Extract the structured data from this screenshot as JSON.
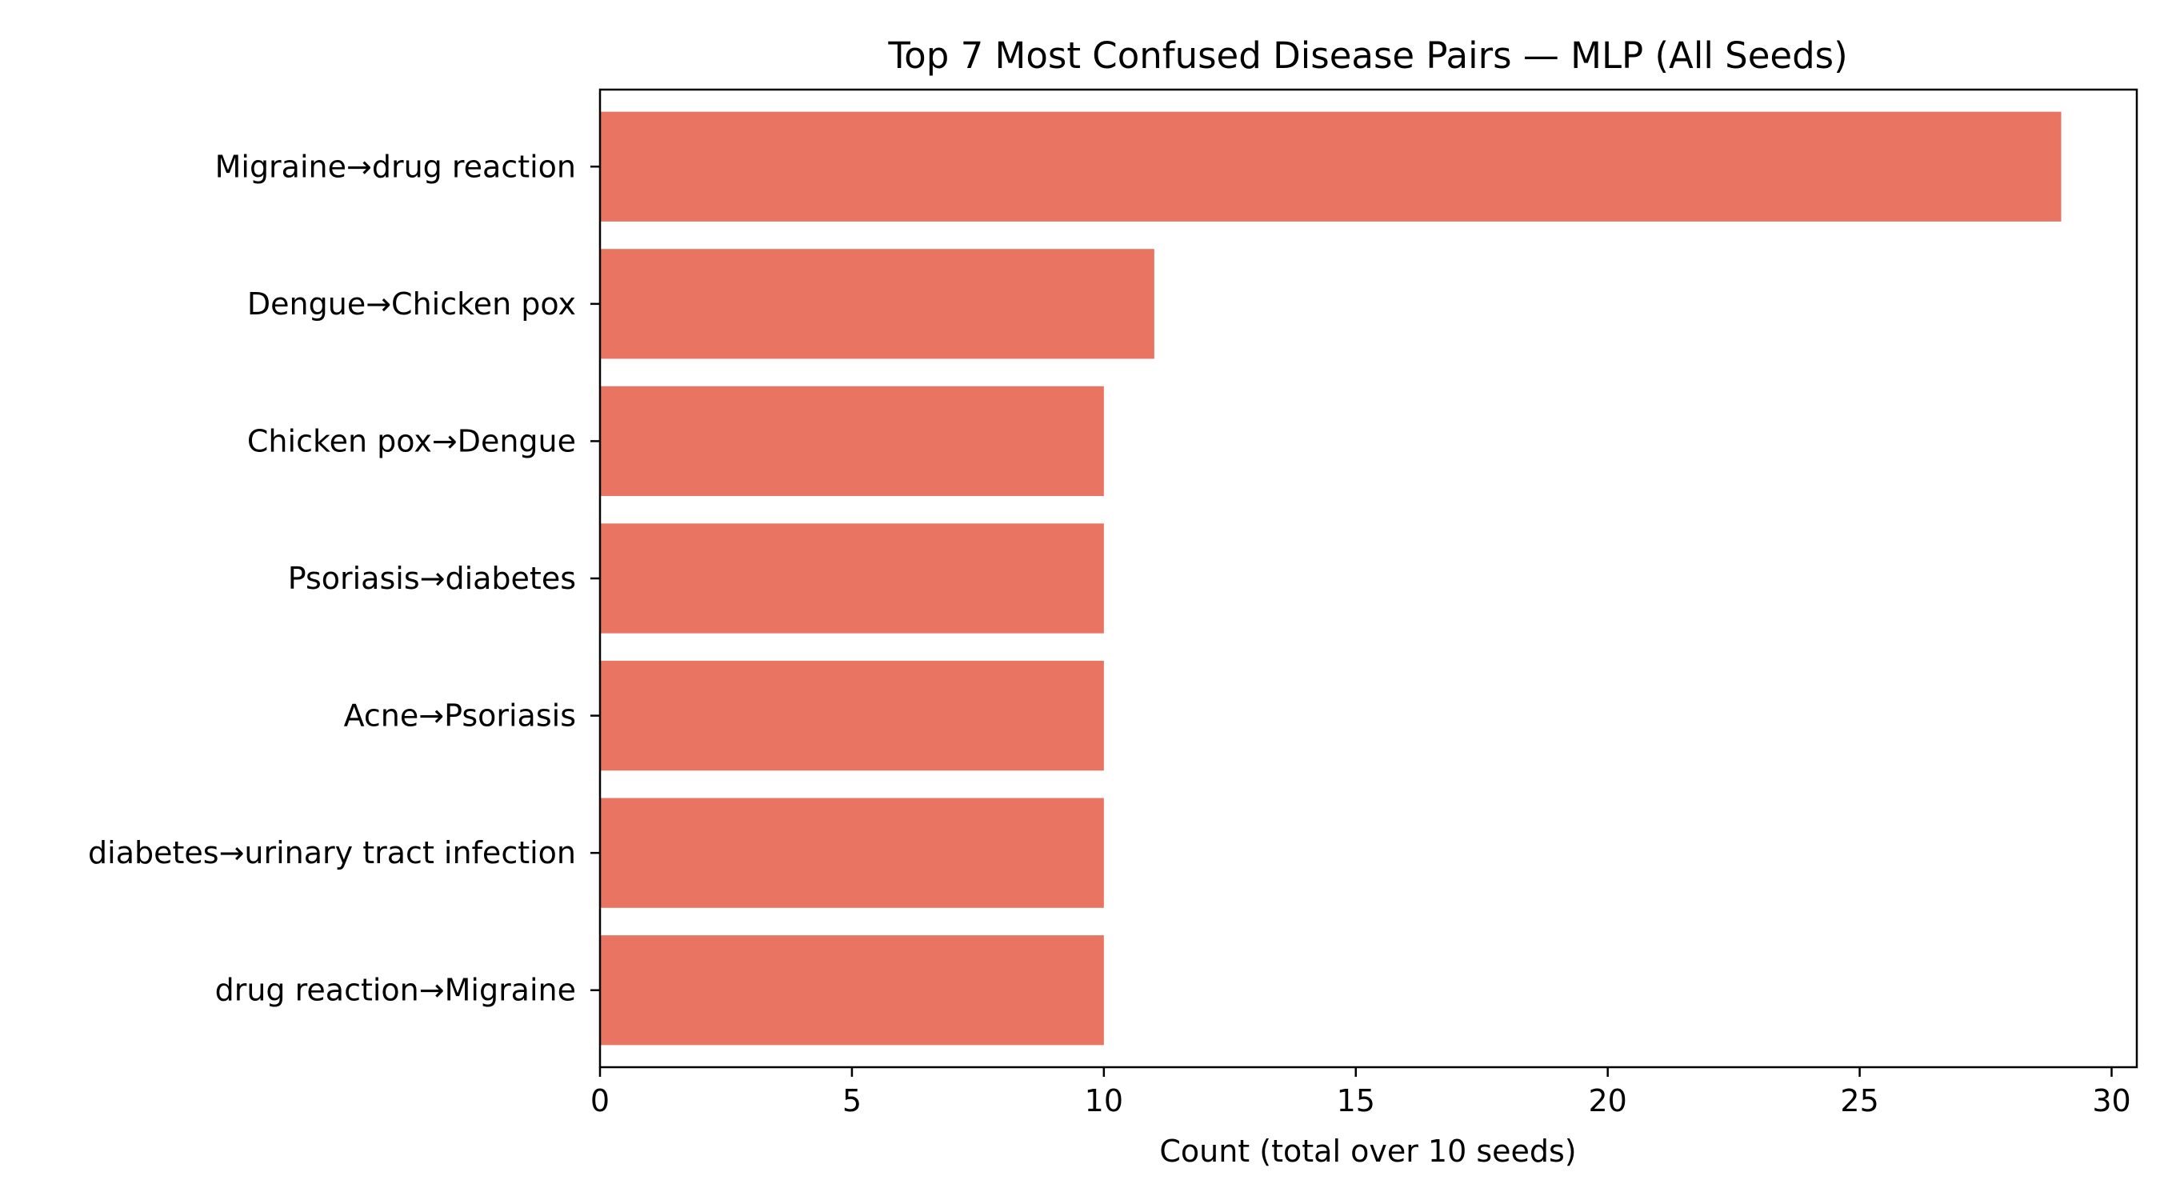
{
  "chart_data": {
    "type": "bar",
    "orientation": "horizontal",
    "title": "Top 7 Most Confused Disease Pairs — MLP (All Seeds)",
    "xlabel": "Count (total over 10 seeds)",
    "ylabel": "",
    "categories": [
      "Migraine→drug reaction",
      "Dengue→Chicken pox",
      "Chicken pox→Dengue",
      "Psoriasis→diabetes",
      "Acne→Psoriasis",
      "diabetes→urinary tract infection",
      "drug reaction→Migraine"
    ],
    "values": [
      29,
      11,
      10,
      10,
      10,
      10,
      10
    ],
    "xlim": [
      0,
      30.5
    ],
    "xticks": [
      0,
      5,
      10,
      15,
      20,
      25,
      30
    ],
    "grid": false,
    "legend": "none",
    "bar_color": "#e87461"
  }
}
